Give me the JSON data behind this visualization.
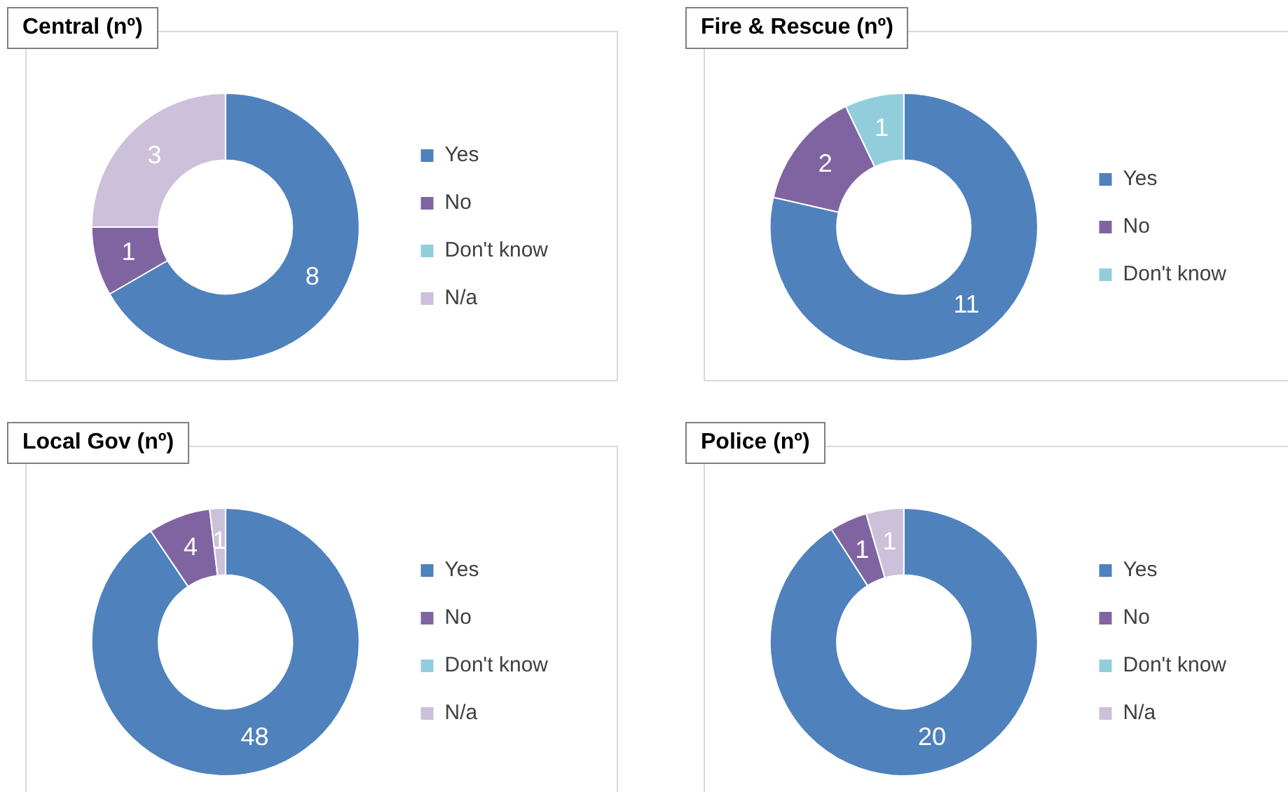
{
  "chart_data": [
    {
      "type": "donut",
      "title": "Central (nº)",
      "categories": [
        "Yes",
        "No",
        "Don't know",
        "N/a"
      ],
      "values": [
        8,
        1,
        0,
        3
      ],
      "value_labels": [
        "8",
        "1",
        null,
        "3"
      ],
      "colors": [
        "#4f81bd",
        "#8064a2",
        "#92cddc",
        "#ccc0da"
      ],
      "legend": "right"
    },
    {
      "type": "donut",
      "title": "Fire & Rescue (nº)",
      "categories": [
        "Yes",
        "No",
        "Don't know"
      ],
      "values": [
        11,
        2,
        1
      ],
      "value_labels": [
        "11",
        "2",
        "1"
      ],
      "colors": [
        "#4f81bd",
        "#8064a2",
        "#92cddc"
      ],
      "legend": "right"
    },
    {
      "type": "donut",
      "title": "Local Gov (nº)",
      "categories": [
        "Yes",
        "No",
        "Don't know",
        "N/a"
      ],
      "values": [
        48,
        4,
        0,
        1
      ],
      "value_labels": [
        "48",
        "4",
        null,
        "1"
      ],
      "colors": [
        "#4f81bd",
        "#8064a2",
        "#92cddc",
        "#ccc0da"
      ],
      "legend": "right"
    },
    {
      "type": "donut",
      "title": "Police (nº)",
      "categories": [
        "Yes",
        "No",
        "Don't know",
        "N/a"
      ],
      "values": [
        20,
        1,
        0,
        1
      ],
      "value_labels": [
        "20",
        "1",
        null,
        "1"
      ],
      "colors": [
        "#4f81bd",
        "#8064a2",
        "#92cddc",
        "#ccc0da"
      ],
      "legend": "right"
    }
  ]
}
